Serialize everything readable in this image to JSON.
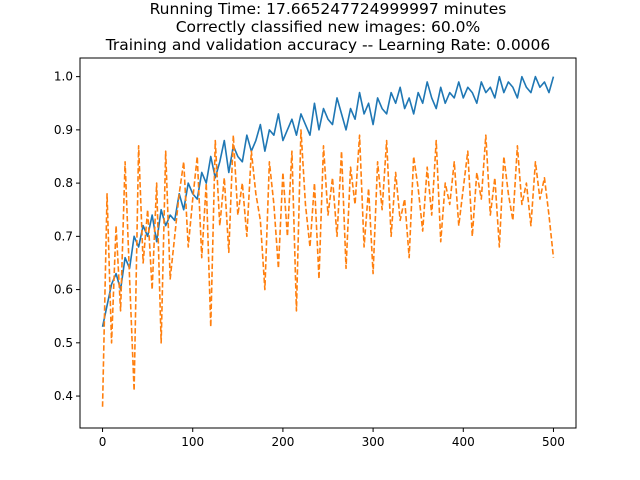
{
  "chart_data": {
    "type": "line",
    "title_lines": [
      "Running Time: 17.665247724999997 minutes",
      "Correctly classified new images: 60.0%",
      "Training and validation accuracy -- Learning Rate: 0.0006"
    ],
    "xlabel": "",
    "ylabel": "",
    "xlim": [
      -25,
      525
    ],
    "ylim": [
      0.34,
      1.035
    ],
    "xticks": [
      0,
      100,
      200,
      300,
      400,
      500
    ],
    "yticks": [
      0.4,
      0.5,
      0.6,
      0.7,
      0.8,
      0.9,
      1.0
    ],
    "xtick_labels": [
      "0",
      "100",
      "200",
      "300",
      "400",
      "500"
    ],
    "ytick_labels": [
      "0.4",
      "0.5",
      "0.6",
      "0.7",
      "0.8",
      "0.9",
      "1.0"
    ],
    "grid": false,
    "series": [
      {
        "color": "#1f77b4",
        "linestyle": "solid",
        "x": [
          0,
          5,
          10,
          15,
          20,
          25,
          30,
          35,
          40,
          45,
          50,
          55,
          60,
          65,
          70,
          75,
          80,
          85,
          90,
          95,
          100,
          105,
          110,
          115,
          120,
          125,
          130,
          135,
          140,
          145,
          150,
          155,
          160,
          165,
          170,
          175,
          180,
          185,
          190,
          195,
          200,
          205,
          210,
          215,
          220,
          225,
          230,
          235,
          240,
          245,
          250,
          255,
          260,
          265,
          270,
          275,
          280,
          285,
          290,
          295,
          300,
          305,
          310,
          315,
          320,
          325,
          330,
          335,
          340,
          345,
          350,
          355,
          360,
          365,
          370,
          375,
          380,
          385,
          390,
          395,
          400,
          405,
          410,
          415,
          420,
          425,
          430,
          435,
          440,
          445,
          450,
          455,
          460,
          465,
          470,
          475,
          480,
          485,
          490,
          495,
          500
        ],
        "y": [
          0.53,
          0.57,
          0.61,
          0.63,
          0.6,
          0.66,
          0.64,
          0.7,
          0.68,
          0.72,
          0.7,
          0.74,
          0.69,
          0.75,
          0.72,
          0.74,
          0.73,
          0.78,
          0.75,
          0.8,
          0.78,
          0.77,
          0.82,
          0.8,
          0.85,
          0.81,
          0.84,
          0.88,
          0.82,
          0.87,
          0.85,
          0.84,
          0.89,
          0.86,
          0.88,
          0.91,
          0.86,
          0.9,
          0.89,
          0.93,
          0.88,
          0.9,
          0.92,
          0.89,
          0.93,
          0.91,
          0.89,
          0.95,
          0.9,
          0.94,
          0.92,
          0.91,
          0.96,
          0.93,
          0.9,
          0.94,
          0.92,
          0.97,
          0.93,
          0.95,
          0.91,
          0.96,
          0.94,
          0.93,
          0.97,
          0.95,
          0.98,
          0.94,
          0.96,
          0.93,
          0.97,
          0.95,
          0.99,
          0.96,
          0.94,
          0.98,
          0.95,
          0.97,
          0.96,
          0.99,
          0.96,
          0.98,
          0.97,
          0.95,
          0.99,
          0.97,
          0.98,
          0.96,
          1.0,
          0.97,
          0.99,
          0.98,
          0.96,
          1.0,
          0.98,
          0.97,
          1.0,
          0.98,
          0.99,
          0.97,
          1.0
        ]
      },
      {
        "color": "#ff7f0e",
        "linestyle": "dashed",
        "x": [
          0,
          5,
          10,
          15,
          20,
          25,
          30,
          35,
          40,
          45,
          50,
          55,
          60,
          65,
          70,
          75,
          80,
          85,
          90,
          95,
          100,
          105,
          110,
          115,
          120,
          125,
          130,
          135,
          140,
          145,
          150,
          155,
          160,
          165,
          170,
          175,
          180,
          185,
          190,
          195,
          200,
          205,
          210,
          215,
          220,
          225,
          230,
          235,
          240,
          245,
          250,
          255,
          260,
          265,
          270,
          275,
          280,
          285,
          290,
          295,
          300,
          305,
          310,
          315,
          320,
          325,
          330,
          335,
          340,
          345,
          350,
          355,
          360,
          365,
          370,
          375,
          380,
          385,
          390,
          395,
          400,
          405,
          410,
          415,
          420,
          425,
          430,
          435,
          440,
          445,
          450,
          455,
          460,
          465,
          470,
          475,
          480,
          485,
          490,
          495,
          500
        ],
        "y": [
          0.38,
          0.78,
          0.5,
          0.72,
          0.56,
          0.84,
          0.62,
          0.41,
          0.87,
          0.65,
          0.75,
          0.6,
          0.8,
          0.5,
          0.86,
          0.62,
          0.7,
          0.78,
          0.84,
          0.68,
          0.77,
          0.85,
          0.66,
          0.8,
          0.53,
          0.88,
          0.72,
          0.81,
          0.67,
          0.89,
          0.74,
          0.8,
          0.7,
          0.86,
          0.78,
          0.73,
          0.6,
          0.84,
          0.76,
          0.64,
          0.82,
          0.7,
          0.86,
          0.56,
          0.9,
          0.76,
          0.68,
          0.8,
          0.62,
          0.87,
          0.74,
          0.81,
          0.7,
          0.86,
          0.64,
          0.83,
          0.76,
          0.89,
          0.68,
          0.79,
          0.63,
          0.84,
          0.75,
          0.88,
          0.7,
          0.82,
          0.73,
          0.77,
          0.66,
          0.85,
          0.79,
          0.71,
          0.83,
          0.74,
          0.88,
          0.69,
          0.8,
          0.76,
          0.84,
          0.72,
          0.79,
          0.86,
          0.7,
          0.82,
          0.77,
          0.89,
          0.74,
          0.81,
          0.68,
          0.85,
          0.78,
          0.73,
          0.87,
          0.76,
          0.8,
          0.72,
          0.84,
          0.77,
          0.81,
          0.74,
          0.66
        ]
      }
    ]
  }
}
